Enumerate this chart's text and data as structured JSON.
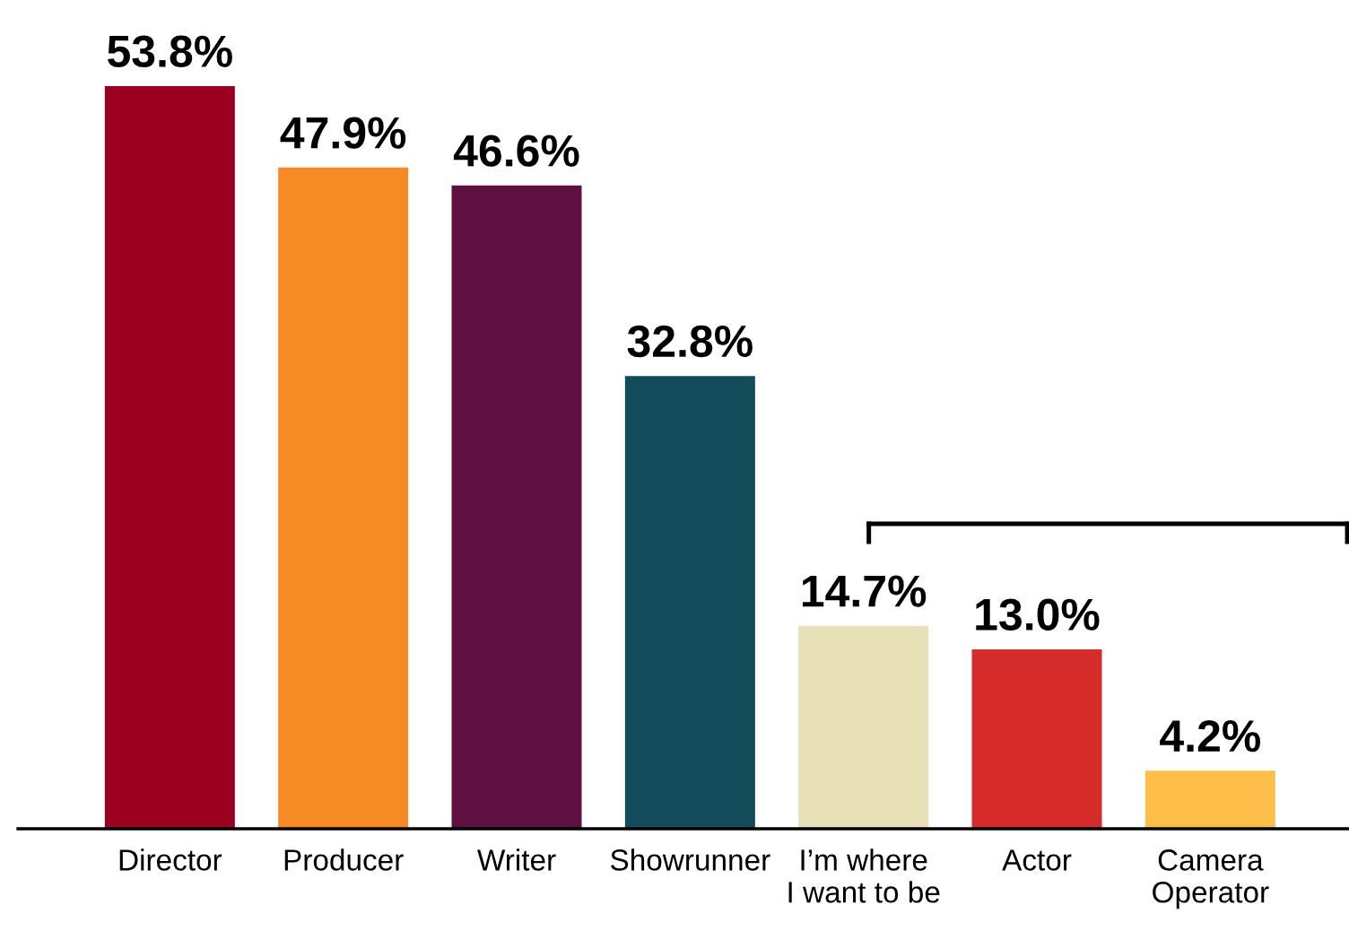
{
  "chart_data": {
    "type": "bar",
    "categories": [
      "Director",
      "Producer",
      "Writer",
      "Showrunner",
      "I’m where\nI want to be",
      "Actor",
      "Camera\nOperator"
    ],
    "values": [
      53.8,
      47.9,
      46.6,
      32.8,
      14.7,
      13.0,
      4.2
    ],
    "colors": [
      "#9b0020",
      "#f68b26",
      "#5e1040",
      "#124b5a",
      "#e8e0b6",
      "#d62b2b",
      "#fdbf4a"
    ],
    "value_labels": [
      "53.8%",
      "47.9%",
      "46.6%",
      "32.8%",
      "14.7%",
      "13.0%",
      "4.2%"
    ],
    "grid": false,
    "legend": false
  }
}
